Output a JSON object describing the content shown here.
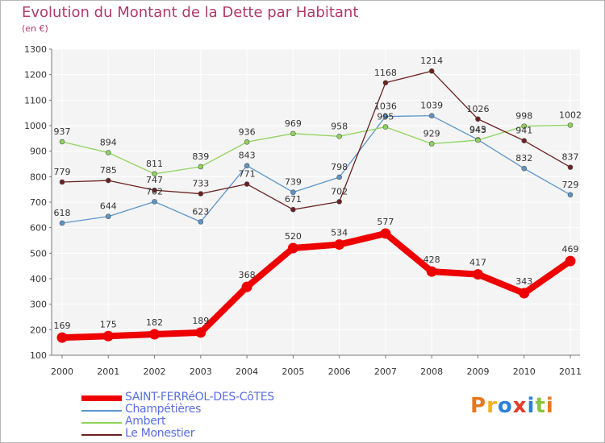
{
  "header": {
    "title": "Evolution du Montant de la Dette par Habitant",
    "subtitle": "(en €)"
  },
  "logo": {
    "text": "Proxiti",
    "colors": [
      "#e8781e",
      "#f2b21c",
      "#2e7fd6",
      "#e33b2c",
      "#2e7fd6",
      "#8bc53f",
      "#e8781e"
    ]
  },
  "chart_data": {
    "type": "line",
    "categories": [
      "2000",
      "2001",
      "2002",
      "2003",
      "2004",
      "2005",
      "2006",
      "2007",
      "2008",
      "2009",
      "2010",
      "2011"
    ],
    "ylim": [
      100,
      1300
    ],
    "yticks": [
      100,
      200,
      300,
      400,
      500,
      600,
      700,
      800,
      900,
      1000,
      1100,
      1200,
      1300
    ],
    "grid": true,
    "legend_position": "bottom-left",
    "title": "Evolution du Montant de la Dette par Habitant",
    "ylabel": "(en €)",
    "series": [
      {
        "name": "Champétières",
        "color": "#5b95c9",
        "values": [
          618,
          644,
          702,
          623,
          843,
          739,
          798,
          1036,
          1039,
          945,
          832,
          729
        ],
        "label_texts": [
          "618",
          "644",
          "702",
          "623",
          "843",
          "739",
          "798",
          "1036",
          "1039",
          "945",
          "832",
          "729"
        ]
      },
      {
        "name": "Ambert",
        "color": "#8ed45c",
        "values": [
          937,
          894,
          811,
          839,
          936,
          969,
          958,
          995,
          929,
          943,
          998,
          1002
        ],
        "label_texts": [
          "937",
          "894",
          "811",
          "839",
          "936",
          "969",
          "958",
          "995",
          "929",
          "943",
          "998",
          "1002"
        ]
      },
      {
        "name": "Le Monestier",
        "color": "#6b2121",
        "values": [
          779,
          785,
          747,
          733,
          771,
          671,
          702,
          1168,
          1214,
          1026,
          941,
          837
        ],
        "label_texts": [
          "779",
          "785",
          "747",
          "733",
          "771",
          "671",
          "702",
          "1168",
          "1214",
          "1026",
          "941",
          "837"
        ]
      },
      {
        "name": "SAINT-FERRéOL-DES-CôTES",
        "color": "#ee0000",
        "values": [
          169,
          175,
          182,
          189,
          368,
          520,
          534,
          577,
          428,
          417,
          343,
          469
        ],
        "label_texts": [
          "169",
          "175",
          "182",
          "189",
          "368",
          "520",
          "534",
          "577",
          "428",
          "417",
          "343",
          "469"
        ]
      }
    ],
    "legend": [
      "SAINT-FERRéOL-DES-CôTES",
      "Champétières",
      "Ambert",
      "Le Monestier"
    ]
  }
}
